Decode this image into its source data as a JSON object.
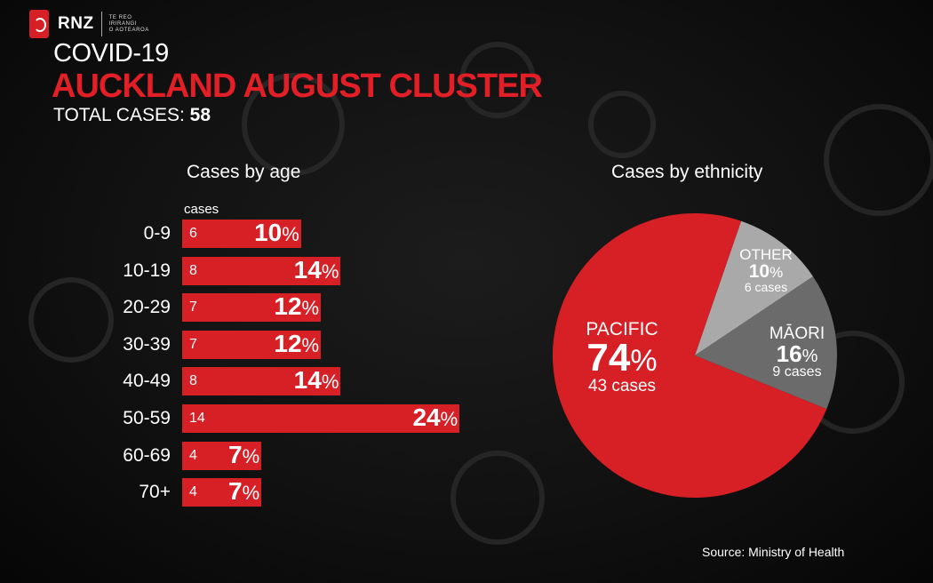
{
  "brand": {
    "name": "RNZ",
    "subtext": [
      "TE REO",
      "IRIRANGI",
      "O AOTEAROA"
    ]
  },
  "header": {
    "kicker": "COVID-19",
    "title": "AUCKLAND AUGUST CLUSTER",
    "total_label": "TOTAL CASES:",
    "total_value": "58"
  },
  "colors": {
    "red": "#d71f26",
    "title_red": "#e21f26",
    "grey_light": "#a9a9a9",
    "grey_dark": "#6b6b6b"
  },
  "chart_data": [
    {
      "type": "bar",
      "orientation": "horizontal",
      "title": "Cases by age",
      "count_label": "cases",
      "categories": [
        "0-9",
        "10-19",
        "20-29",
        "30-39",
        "40-49",
        "50-59",
        "60-69",
        "70+"
      ],
      "values": [
        6,
        8,
        7,
        7,
        8,
        14,
        4,
        4
      ],
      "percent_labels": [
        "10",
        "14",
        "12",
        "12",
        "14",
        "24",
        "7",
        "7"
      ],
      "percent_symbol": "%"
    },
    {
      "type": "pie",
      "title": "Cases by ethnicity",
      "slices": [
        {
          "name": "PACIFIC",
          "value": 43,
          "percent": "74",
          "cases_label": "43 cases",
          "color": "#d71f26"
        },
        {
          "name": "MĀORI",
          "value": 9,
          "percent": "16",
          "cases_label": "9 cases",
          "color": "#6b6b6b"
        },
        {
          "name": "OTHER",
          "value": 6,
          "percent": "10",
          "cases_label": "6 cases",
          "color": "#a9a9a9"
        }
      ],
      "percent_symbol": "%"
    }
  ],
  "source": "Source: Ministry of Health"
}
